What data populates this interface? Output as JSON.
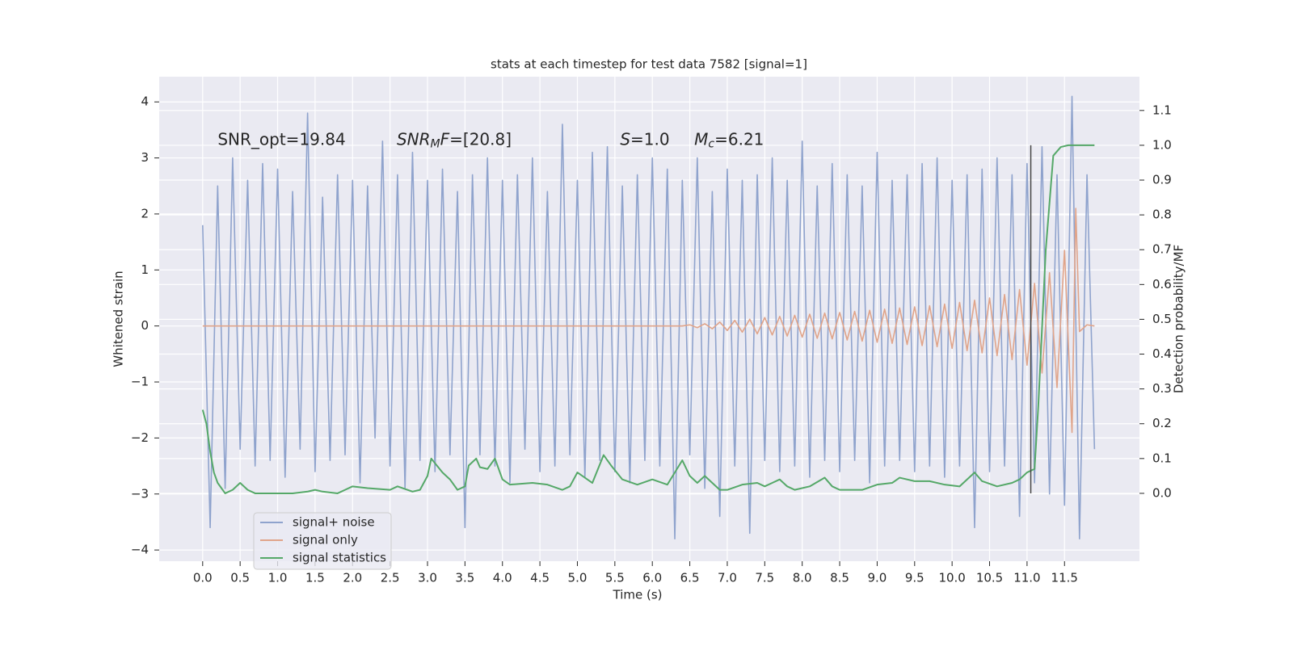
{
  "chart_data": {
    "type": "line",
    "title": "stats at each timestep for test data 7582 [signal=1]",
    "xlabel": "Time (s)",
    "ylabel": "Whitened strain",
    "y2label": "Detection probability/MF",
    "xlim": [
      -0.58,
      12.5
    ],
    "ylim": [
      -4.2,
      4.45
    ],
    "y2lim": [
      -0.195,
      1.197
    ],
    "xticks": [
      {
        "value": 0,
        "label": "0.0"
      },
      {
        "value": 0.5,
        "label": "0.5"
      },
      {
        "value": 1,
        "label": "1.0"
      },
      {
        "value": 1.5,
        "label": "1.5"
      },
      {
        "value": 2,
        "label": "2.0"
      },
      {
        "value": 2.5,
        "label": "2.5"
      },
      {
        "value": 3,
        "label": "3.0"
      },
      {
        "value": 3.5,
        "label": "3.5"
      },
      {
        "value": 4,
        "label": "4.0"
      },
      {
        "value": 4.5,
        "label": "4.5"
      },
      {
        "value": 5,
        "label": "5.0"
      },
      {
        "value": 5.5,
        "label": "5.5"
      },
      {
        "value": 6,
        "label": "6.0"
      },
      {
        "value": 6.5,
        "label": "6.5"
      },
      {
        "value": 7,
        "label": "7.0"
      },
      {
        "value": 7.5,
        "label": "7.5"
      },
      {
        "value": 8,
        "label": "8.0"
      },
      {
        "value": 8.5,
        "label": "8.5"
      },
      {
        "value": 9,
        "label": "9.0"
      },
      {
        "value": 9.5,
        "label": "9.5"
      },
      {
        "value": 10,
        "label": "10.0"
      },
      {
        "value": 10.5,
        "label": "10.5"
      },
      {
        "value": 11,
        "label": "11.0"
      },
      {
        "value": 11.5,
        "label": "11.5"
      }
    ],
    "yticks": [
      4,
      3,
      2,
      1,
      0,
      {
        "value": -1,
        "label": "−1"
      },
      {
        "value": -2,
        "label": "−2"
      },
      {
        "value": -3,
        "label": "−3"
      },
      {
        "value": -4,
        "label": "−4"
      }
    ],
    "y2ticks": [
      {
        "value": 0,
        "label": "0.0"
      },
      {
        "value": 0.1,
        "label": "0.1"
      },
      {
        "value": 0.2,
        "label": "0.2"
      },
      {
        "value": 0.3,
        "label": "0.3"
      },
      {
        "value": 0.4,
        "label": "0.4"
      },
      {
        "value": 0.5,
        "label": "0.5"
      },
      {
        "value": 0.6,
        "label": "0.6"
      },
      {
        "value": 0.7,
        "label": "0.7"
      },
      {
        "value": 0.8,
        "label": "0.8"
      },
      {
        "value": 0.9,
        "label": "0.9"
      },
      {
        "value": 1.0,
        "label": "1.0"
      },
      {
        "value": 1.1,
        "label": "1.1"
      }
    ],
    "grid": true,
    "legend": "lower left",
    "series": [
      {
        "name": "signal+ noise",
        "color": "#8fa3cd",
        "x": [
          0,
          0.1,
          0.2,
          0.3,
          0.4,
          0.5,
          0.6,
          0.7,
          0.8,
          0.9,
          1,
          1.1,
          1.2,
          1.3,
          1.4,
          1.5,
          1.6,
          1.7,
          1.8,
          1.9,
          2,
          2.1,
          2.2,
          2.3,
          2.4,
          2.5,
          2.6,
          2.7,
          2.8,
          2.9,
          3,
          3.1,
          3.2,
          3.3,
          3.4,
          3.5,
          3.6,
          3.7,
          3.8,
          3.9,
          4,
          4.1,
          4.2,
          4.3,
          4.4,
          4.5,
          4.6,
          4.7,
          4.8,
          4.9,
          5,
          5.1,
          5.2,
          5.3,
          5.4,
          5.5,
          5.6,
          5.7,
          5.8,
          5.9,
          6,
          6.1,
          6.2,
          6.3,
          6.4,
          6.5,
          6.6,
          6.7,
          6.8,
          6.9,
          7,
          7.1,
          7.2,
          7.3,
          7.4,
          7.5,
          7.6,
          7.7,
          7.8,
          7.9,
          8,
          8.1,
          8.2,
          8.3,
          8.4,
          8.5,
          8.6,
          8.7,
          8.8,
          8.9,
          9,
          9.1,
          9.2,
          9.3,
          9.4,
          9.5,
          9.6,
          9.7,
          9.8,
          9.9,
          10,
          10.1,
          10.2,
          10.3,
          10.4,
          10.5,
          10.6,
          10.7,
          10.8,
          10.9,
          11,
          11.1,
          11.2,
          11.3,
          11.4,
          11.5,
          11.6,
          11.7,
          11.8,
          11.9
        ],
        "values": [
          1.8,
          -3.6,
          2.5,
          -2.9,
          3.0,
          -2.2,
          2.6,
          -2.5,
          2.9,
          -2.4,
          2.8,
          -2.7,
          2.4,
          -2.2,
          3.8,
          -2.6,
          2.3,
          -2.4,
          2.7,
          -2.3,
          2.6,
          -2.8,
          2.5,
          -2.0,
          3.3,
          -2.5,
          2.7,
          -2.9,
          3.1,
          -2.4,
          2.6,
          -2.6,
          2.8,
          -2.3,
          2.4,
          -3.6,
          2.7,
          -2.3,
          3.0,
          -2.5,
          2.6,
          -2.8,
          2.7,
          -2.2,
          3.0,
          -2.6,
          2.4,
          -2.5,
          3.6,
          -2.3,
          2.6,
          -2.7,
          3.1,
          -2.4,
          3.2,
          -2.6,
          2.5,
          -2.8,
          2.7,
          -2.4,
          3.0,
          -2.5,
          2.8,
          -3.8,
          2.6,
          -2.3,
          3.0,
          -2.9,
          2.4,
          -3.4,
          2.8,
          -2.5,
          2.6,
          -3.7,
          2.7,
          -2.4,
          3.0,
          -2.6,
          2.6,
          -2.5,
          3.3,
          -2.7,
          2.5,
          -2.4,
          2.9,
          -2.6,
          2.7,
          -2.4,
          2.5,
          -2.8,
          3.1,
          -2.5,
          2.6,
          -2.4,
          2.7,
          -2.6,
          2.9,
          -2.5,
          3.0,
          -2.7,
          2.6,
          -2.5,
          2.7,
          -3.6,
          2.8,
          -2.6,
          3.0,
          -2.5,
          2.7,
          -3.4,
          2.9,
          -2.8,
          3.2,
          -3.0,
          2.7,
          -3.2,
          4.1,
          -3.8,
          2.7,
          -2.2
        ]
      },
      {
        "name": "signal only",
        "color": "#e0a48a",
        "x": [
          0,
          6.4,
          6.5,
          6.6,
          6.7,
          6.8,
          6.9,
          7,
          7.1,
          7.2,
          7.3,
          7.4,
          7.5,
          7.6,
          7.7,
          7.8,
          7.9,
          8,
          8.1,
          8.2,
          8.3,
          8.4,
          8.5,
          8.6,
          8.7,
          8.8,
          8.9,
          9,
          9.1,
          9.2,
          9.3,
          9.4,
          9.5,
          9.6,
          9.7,
          9.8,
          9.9,
          10,
          10.1,
          10.2,
          10.3,
          10.4,
          10.5,
          10.6,
          10.7,
          10.8,
          10.9,
          11,
          11.1,
          11.2,
          11.3,
          11.4,
          11.5,
          11.6,
          11.65,
          11.7,
          11.8,
          11.9
        ],
        "values": [
          0,
          0,
          0.02,
          -0.03,
          0.04,
          -0.05,
          0.07,
          -0.08,
          0.1,
          -0.11,
          0.12,
          -0.14,
          0.15,
          -0.16,
          0.17,
          -0.18,
          0.19,
          -0.2,
          0.21,
          -0.22,
          0.23,
          -0.23,
          0.24,
          -0.25,
          0.26,
          -0.27,
          0.28,
          -0.29,
          0.3,
          -0.31,
          0.32,
          -0.33,
          0.34,
          -0.35,
          0.36,
          -0.37,
          0.39,
          -0.4,
          0.42,
          -0.44,
          0.46,
          -0.48,
          0.5,
          -0.53,
          0.56,
          -0.6,
          0.65,
          -0.7,
          0.76,
          -0.84,
          0.95,
          -1.1,
          1.35,
          -1.9,
          2.1,
          -0.1,
          0.02,
          0
        ]
      },
      {
        "name": "signal statistics",
        "color": "#55a868",
        "axis": "y2",
        "x": [
          0,
          0.05,
          0.1,
          0.15,
          0.2,
          0.3,
          0.4,
          0.5,
          0.6,
          0.7,
          0.9,
          1,
          1.2,
          1.4,
          1.5,
          1.6,
          1.8,
          1.9,
          2,
          2.2,
          2.5,
          2.6,
          2.8,
          2.9,
          3,
          3.05,
          3.2,
          3.3,
          3.4,
          3.5,
          3.55,
          3.65,
          3.7,
          3.8,
          3.9,
          4,
          4.1,
          4.4,
          4.6,
          4.8,
          4.9,
          5,
          5.1,
          5.2,
          5.35,
          5.45,
          5.6,
          5.8,
          6,
          6.2,
          6.3,
          6.4,
          6.5,
          6.6,
          6.7,
          6.8,
          6.9,
          7,
          7.2,
          7.4,
          7.5,
          7.6,
          7.7,
          7.8,
          7.9,
          8.1,
          8.3,
          8.4,
          8.5,
          8.8,
          9,
          9.2,
          9.3,
          9.5,
          9.7,
          9.9,
          10.1,
          10.3,
          10.4,
          10.6,
          10.8,
          10.9,
          11,
          11.1,
          11.15,
          11.25,
          11.35,
          11.45,
          11.55,
          11.9
        ],
        "values": [
          0.24,
          0.2,
          0.12,
          0.06,
          0.03,
          0,
          0.01,
          0.03,
          0.01,
          0,
          0,
          0,
          0,
          0.005,
          0.01,
          0.005,
          0,
          0.01,
          0.02,
          0.015,
          0.01,
          0.02,
          0.005,
          0.01,
          0.05,
          0.1,
          0.06,
          0.04,
          0.01,
          0.02,
          0.08,
          0.1,
          0.075,
          0.07,
          0.1,
          0.04,
          0.025,
          0.03,
          0.025,
          0.01,
          0.02,
          0.06,
          0.045,
          0.03,
          0.11,
          0.08,
          0.04,
          0.025,
          0.04,
          0.025,
          0.06,
          0.095,
          0.05,
          0.03,
          0.05,
          0.03,
          0.01,
          0.01,
          0.025,
          0.03,
          0.02,
          0.03,
          0.04,
          0.02,
          0.01,
          0.02,
          0.045,
          0.02,
          0.01,
          0.01,
          0.025,
          0.03,
          0.045,
          0.035,
          0.035,
          0.025,
          0.02,
          0.06,
          0.035,
          0.02,
          0.03,
          0.04,
          0.06,
          0.07,
          0.25,
          0.7,
          0.97,
          0.995,
          1.0,
          1.0
        ]
      }
    ],
    "vline": {
      "x": 11.05,
      "y2": [
        0,
        1.0
      ],
      "color": "#444444"
    },
    "annotations": [
      {
        "x": 0.2,
        "y": 3.32,
        "parts": [
          "SNR_opt=19.84"
        ],
        "styles": [
          "normal"
        ]
      },
      {
        "x": 2.59,
        "y": 3.32,
        "parts": [
          "SNR",
          "M",
          "F",
          "=[20.8]"
        ],
        "styles": [
          "italic",
          "italic-subscript",
          "italic",
          "normal"
        ]
      },
      {
        "x": 5.57,
        "y": 3.32,
        "parts": [
          "S",
          "=1.0"
        ],
        "styles": [
          "italic",
          "normal"
        ]
      },
      {
        "x": 6.56,
        "y": 3.32,
        "parts": [
          "M",
          "c",
          "=6.21"
        ],
        "styles": [
          "italic",
          "italic-subscript",
          "normal"
        ]
      }
    ]
  }
}
